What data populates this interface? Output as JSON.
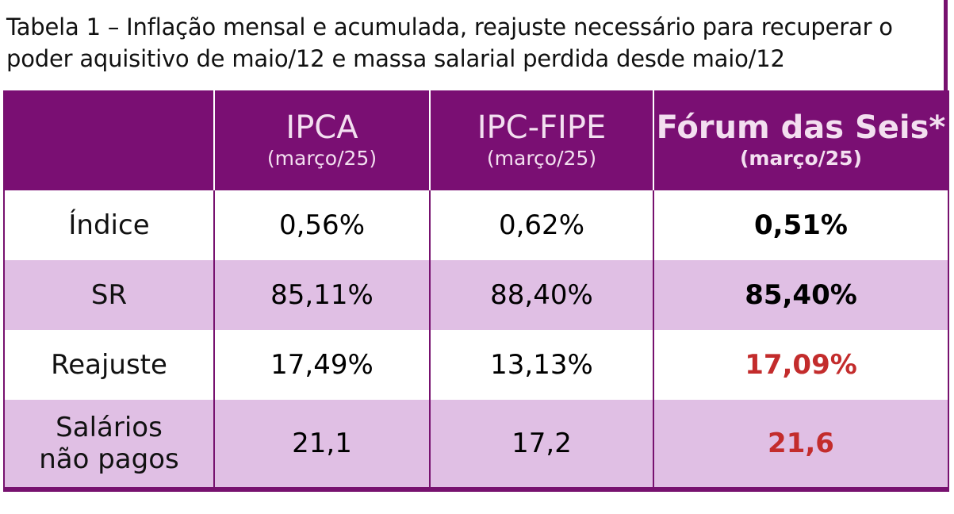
{
  "caption": "Tabela 1 – Inflação mensal e acumulada, reajuste necessário para recuperar o poder aquisitivo de maio/12 e massa salarial perdida desde maio/12",
  "table": {
    "header": {
      "empty": "",
      "columns": [
        {
          "title": "IPCA",
          "subtitle": "(março/25)"
        },
        {
          "title": "IPC-FIPE",
          "subtitle": "(março/25)"
        },
        {
          "title": "Fórum das Seis*",
          "subtitle": "(março/25)"
        }
      ]
    },
    "rows": [
      {
        "label": "Índice",
        "ipca": "0,56%",
        "ipc_fipe": "0,62%",
        "forum": "0,51%"
      },
      {
        "label": "SR",
        "ipca": "85,11%",
        "ipc_fipe": "88,40%",
        "forum": "85,40%"
      },
      {
        "label": "Reajuste",
        "ipca": "17,49%",
        "ipc_fipe": "13,13%",
        "forum": "17,09%"
      },
      {
        "label_line1": "Salários",
        "label_line2": "não pagos",
        "ipca": "21,1",
        "ipc_fipe": "17,2",
        "forum": "21,6"
      }
    ]
  },
  "colors": {
    "header_background": "#7a0f73",
    "header_text": "#f3dff0",
    "stripe": "#e0bfe4",
    "highlight_red": "#c32c2c"
  }
}
